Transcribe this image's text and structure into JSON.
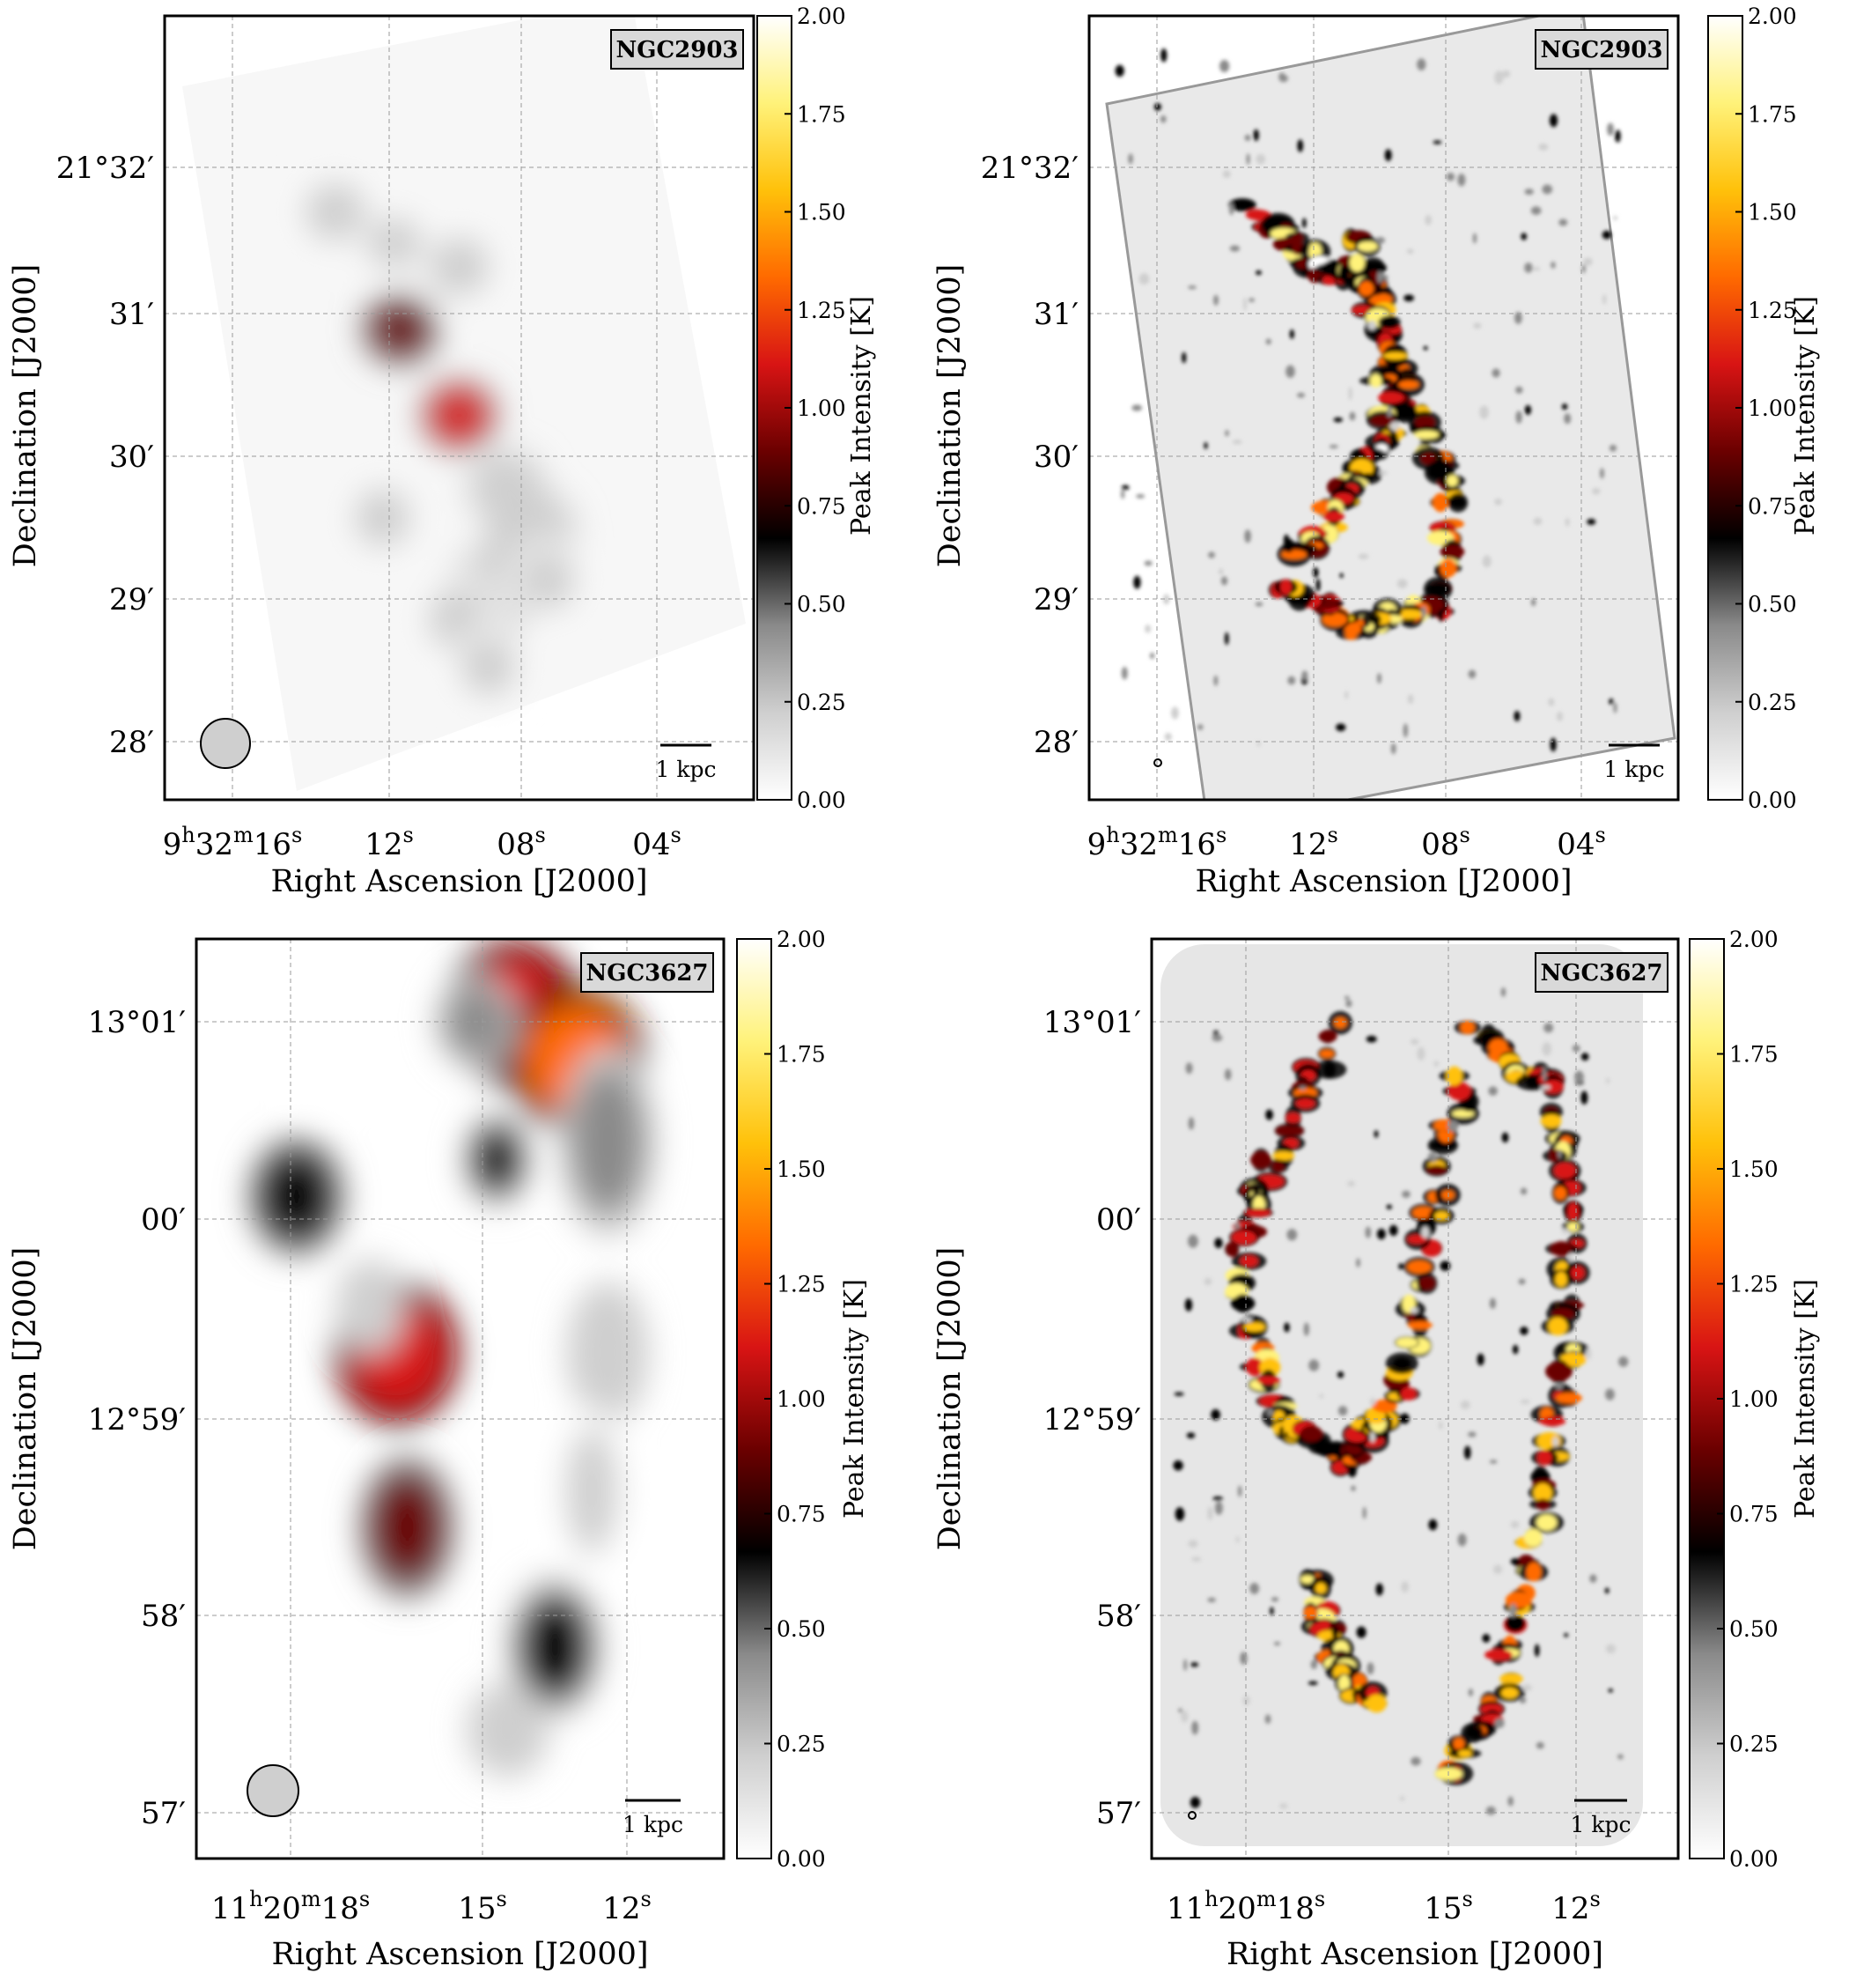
{
  "colors": {
    "colormap_stops": [
      "#ffffff",
      "#cfcfcf",
      "#8a8a8a",
      "#000000",
      "#6b0000",
      "#d81414",
      "#ff6a00",
      "#ffc10a",
      "#fff27a",
      "#ffffff"
    ],
    "background": "#ffffff",
    "grid": "#9a9a9a",
    "label_box_fill": "#d9d9d9",
    "beam_fill": "#cfcfcf"
  },
  "panels": [
    {
      "galaxy": "NGC2903",
      "style": "smooth",
      "ra_ticks": [
        "9h32m16s",
        "12s",
        "08s",
        "04s"
      ],
      "dec_ticks": [
        "21°32′",
        "31′",
        "30′",
        "29′",
        "28′"
      ],
      "xlabel": "Right Ascension [J2000]",
      "ylabel": "Declination [J2000]",
      "scalebar": "1 kpc",
      "colorbar": {
        "label": "Peak Intensity [K]",
        "ticks": [
          "2.00",
          "1.75",
          "1.50",
          "1.25",
          "1.00",
          "0.75",
          "0.50",
          "0.25",
          "0.00"
        ],
        "min": 0,
        "max": 2
      },
      "beam": "large"
    },
    {
      "galaxy": "NGC2903",
      "style": "detailed",
      "ra_ticks": [
        "9h32m16s",
        "12s",
        "08s",
        "04s"
      ],
      "dec_ticks": [
        "21°32′",
        "31′",
        "30′",
        "29′",
        "28′"
      ],
      "xlabel": "Right Ascension [J2000]",
      "ylabel": "Declination [J2000]",
      "scalebar": "1 kpc",
      "colorbar": {
        "label": "Peak Intensity [K]",
        "ticks": [
          "2.00",
          "1.75",
          "1.50",
          "1.25",
          "1.00",
          "0.75",
          "0.50",
          "0.25",
          "0.00"
        ],
        "min": 0,
        "max": 2
      },
      "beam": "small"
    },
    {
      "galaxy": "NGC3627",
      "style": "smooth",
      "ra_ticks": [
        "11h20m18s",
        "15s",
        "12s"
      ],
      "dec_ticks": [
        "13°01′",
        "00′",
        "12°59′",
        "58′",
        "57′"
      ],
      "xlabel": "Right Ascension [J2000]",
      "ylabel": "Declination [J2000]",
      "scalebar": "1 kpc",
      "colorbar": {
        "label": "Peak Intensity [K]",
        "ticks": [
          "2.00",
          "1.75",
          "1.50",
          "1.25",
          "1.00",
          "0.75",
          "0.50",
          "0.25",
          "0.00"
        ],
        "min": 0,
        "max": 2
      },
      "beam": "large"
    },
    {
      "galaxy": "NGC3627",
      "style": "detailed",
      "ra_ticks": [
        "11h20m18s",
        "15s",
        "12s"
      ],
      "dec_ticks": [
        "13°01′",
        "00′",
        "12°59′",
        "58′",
        "57′"
      ],
      "xlabel": "Right Ascension [J2000]",
      "ylabel": "Declination [J2000]",
      "scalebar": "1 kpc",
      "colorbar": {
        "label": "Peak Intensity [K]",
        "ticks": [
          "2.00",
          "1.75",
          "1.50",
          "1.25",
          "1.00",
          "0.75",
          "0.50",
          "0.25",
          "0.00"
        ],
        "min": 0,
        "max": 2
      },
      "beam": "small"
    }
  ]
}
